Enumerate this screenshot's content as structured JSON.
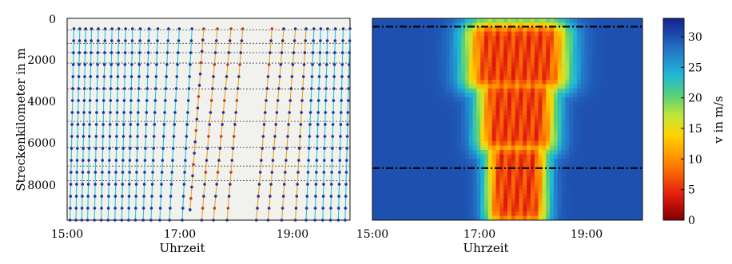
{
  "chart_data": [
    {
      "type": "scatter",
      "xlabel": "Uhrzeit",
      "ylabel": "Streckenkilometer in m",
      "x_ticks": [
        "15:00",
        "17:00",
        "19:00"
      ],
      "y_ticks": [
        "0",
        "2000",
        "4000",
        "6000",
        "8000"
      ],
      "xlim": [
        "15:00",
        "19:50"
      ],
      "ylim": [
        9500,
        -200
      ],
      "y_inverted": true,
      "grid": "dashed horizontal lines",
      "horizontal_lines_y": [
        350,
        1000,
        1450,
        1950,
        3200,
        4750,
        6000,
        6900,
        7600
      ],
      "trajectories": [
        {
          "x": [
            "15:03",
            "15:07"
          ],
          "y": [
            9500,
            300
          ]
        },
        {
          "x": [
            "15:09",
            "15:13"
          ],
          "y": [
            9500,
            300
          ]
        },
        {
          "x": [
            "15:15",
            "15:19"
          ],
          "y": [
            9500,
            300
          ]
        },
        {
          "x": [
            "15:21",
            "15:25"
          ],
          "y": [
            9500,
            300
          ]
        },
        {
          "x": [
            "15:28",
            "15:32"
          ],
          "y": [
            9500,
            300
          ]
        },
        {
          "x": [
            "15:35",
            "15:39"
          ],
          "y": [
            9500,
            300
          ]
        },
        {
          "x": [
            "15:42",
            "15:46"
          ],
          "y": [
            9500,
            300
          ]
        },
        {
          "x": [
            "15:49",
            "15:53"
          ],
          "y": [
            9500,
            300
          ]
        },
        {
          "x": [
            "15:56",
            "16:00"
          ],
          "y": [
            9500,
            300
          ]
        },
        {
          "x": [
            "16:03",
            "16:07"
          ],
          "y": [
            9500,
            300
          ]
        },
        {
          "x": [
            "16:10",
            "16:15"
          ],
          "y": [
            9500,
            300
          ]
        },
        {
          "x": [
            "16:18",
            "16:24"
          ],
          "y": [
            9500,
            300
          ]
        },
        {
          "x": [
            "16:26",
            "16:33"
          ],
          "y": [
            9500,
            300
          ]
        },
        {
          "x": [
            "16:35",
            "16:44"
          ],
          "y": [
            9500,
            300
          ]
        },
        {
          "x": [
            "16:45",
            "16:55"
          ],
          "y": [
            9500,
            300
          ]
        },
        {
          "x": [
            "16:58",
            "17:08"
          ],
          "y": [
            9500,
            300
          ]
        },
        {
          "x": [
            "17:06",
            "17:20"
          ],
          "y": [
            9000,
            300
          ]
        },
        {
          "x": [
            "17:18",
            "17:34"
          ],
          "y": [
            9500,
            300
          ]
        },
        {
          "x": [
            "17:30",
            "17:48"
          ],
          "y": [
            9500,
            300
          ]
        },
        {
          "x": [
            "17:44",
            "18:00"
          ],
          "y": [
            9500,
            300
          ]
        },
        {
          "x": [
            "18:14",
            "18:30"
          ],
          "y": [
            9500,
            300
          ]
        },
        {
          "x": [
            "18:26",
            "18:42"
          ],
          "y": [
            9500,
            300
          ]
        },
        {
          "x": [
            "18:40",
            "18:54"
          ],
          "y": [
            9500,
            300
          ]
        },
        {
          "x": [
            "18:54",
            "19:05"
          ],
          "y": [
            9500,
            300
          ]
        },
        {
          "x": [
            "19:05",
            "19:13"
          ],
          "y": [
            9500,
            300
          ]
        },
        {
          "x": [
            "19:14",
            "19:20"
          ],
          "y": [
            9500,
            300
          ]
        },
        {
          "x": [
            "19:22",
            "19:27"
          ],
          "y": [
            9500,
            300
          ]
        },
        {
          "x": [
            "19:30",
            "19:35"
          ],
          "y": [
            9500,
            300
          ]
        },
        {
          "x": [
            "19:38",
            "19:43"
          ],
          "y": [
            9500,
            300
          ]
        },
        {
          "x": [
            "19:45",
            "19:50"
          ],
          "y": [
            9500,
            300
          ]
        }
      ],
      "colors": {
        "dots": "#2b2d9c",
        "line_fast": "#22c4d8",
        "line_slow": "#e6a11a"
      }
    },
    {
      "type": "heatmap",
      "xlabel": "Uhrzeit",
      "x_ticks": [
        "15:00",
        "17:00",
        "19:00"
      ],
      "xlim": [
        "15:00",
        "19:50"
      ],
      "ylim": [
        9500,
        -200
      ],
      "y_inverted": true,
      "dash_dot_lines_y": [
        200,
        7000
      ],
      "colorbar": {
        "label": "v in m/s",
        "ticks": [
          "0",
          "5",
          "10",
          "15",
          "20",
          "25",
          "30"
        ],
        "range": [
          0,
          33
        ],
        "colormap": "jet_reversed"
      },
      "congestion_speed_ms": 6,
      "free_flow_speed_ms": 30,
      "congestion_regions": [
        {
          "time": [
            "16:40",
            "18:30"
          ],
          "km": [
            300,
            3000
          ]
        },
        {
          "time": [
            "16:55",
            "18:15"
          ],
          "km": [
            3000,
            6000
          ]
        },
        {
          "time": [
            "17:05",
            "18:05"
          ],
          "km": [
            6000,
            9500
          ]
        }
      ]
    }
  ]
}
